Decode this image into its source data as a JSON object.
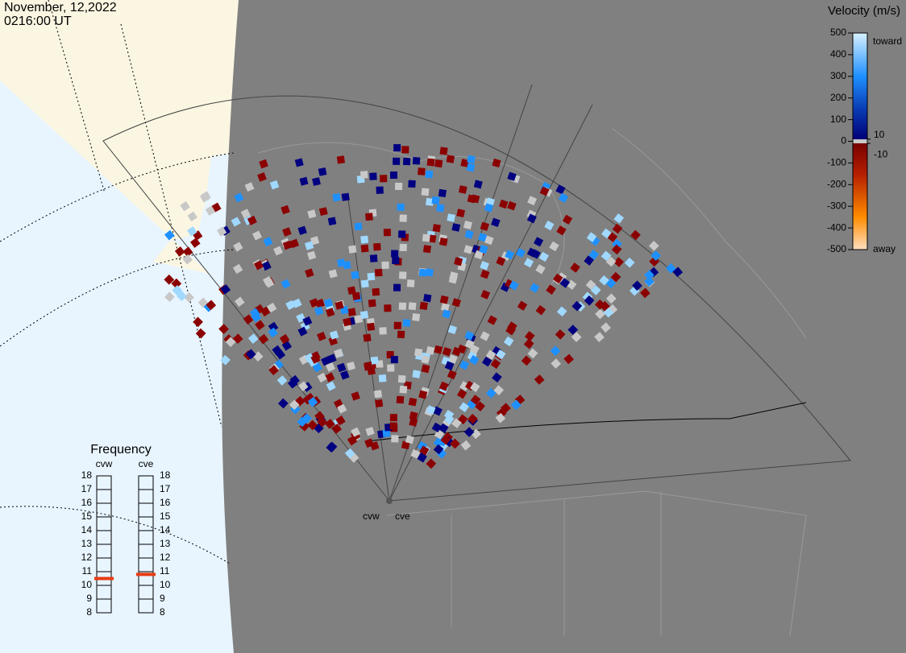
{
  "header": {
    "date": "November, 12,2022",
    "time": "0216:00 UT"
  },
  "colorbar": {
    "title": "Velocity (m/s)",
    "lim": [
      -500,
      500
    ],
    "ticks": [
      500,
      400,
      300,
      200,
      100,
      0,
      -100,
      -200,
      -300,
      -400,
      -500
    ],
    "inner_ticks": [
      10,
      -10
    ],
    "top_label": "toward",
    "bottom_label": "away"
  },
  "frequency": {
    "title": "Frequency",
    "lim": [
      8,
      18
    ],
    "ticks": [
      8,
      9,
      10,
      11,
      12,
      13,
      14,
      15,
      16,
      17,
      18
    ],
    "radars": [
      {
        "name": "cvw",
        "value": 10.5
      },
      {
        "name": "cve",
        "value": 10.8
      }
    ]
  },
  "sites": [
    "cvw",
    "cve"
  ]
}
